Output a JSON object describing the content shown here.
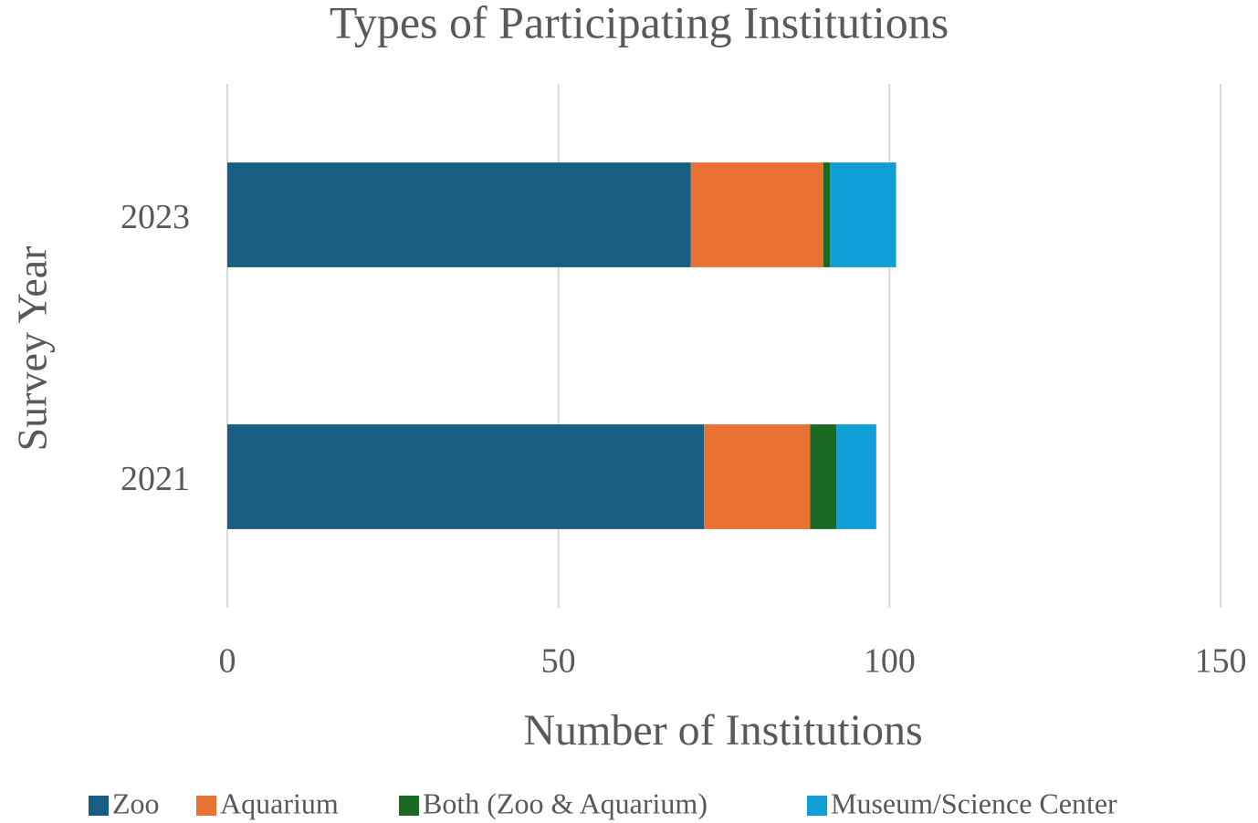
{
  "chart_data": {
    "type": "bar",
    "orientation": "horizontal",
    "stacked": true,
    "title": "Types of Participating Institutions",
    "x_label": "Number of Institutions",
    "y_label": "Survey Year",
    "categories": [
      "2023",
      "2021"
    ],
    "series": [
      {
        "name": "Zoo",
        "color": "#175e82",
        "values": [
          70,
          72
        ]
      },
      {
        "name": "Aquarium",
        "color": "#e97132",
        "values": [
          20,
          16
        ]
      },
      {
        "name": "Both (Zoo & Aquarium)",
        "color": "#196b24",
        "values": [
          1,
          4
        ]
      },
      {
        "name": "Museum/Science Center",
        "color": "#0f9ed5",
        "values": [
          10,
          6
        ]
      }
    ],
    "xlim": [
      0,
      150
    ],
    "xticks": [
      0,
      50,
      100,
      150
    ],
    "grid": true,
    "legend": "bottom"
  }
}
